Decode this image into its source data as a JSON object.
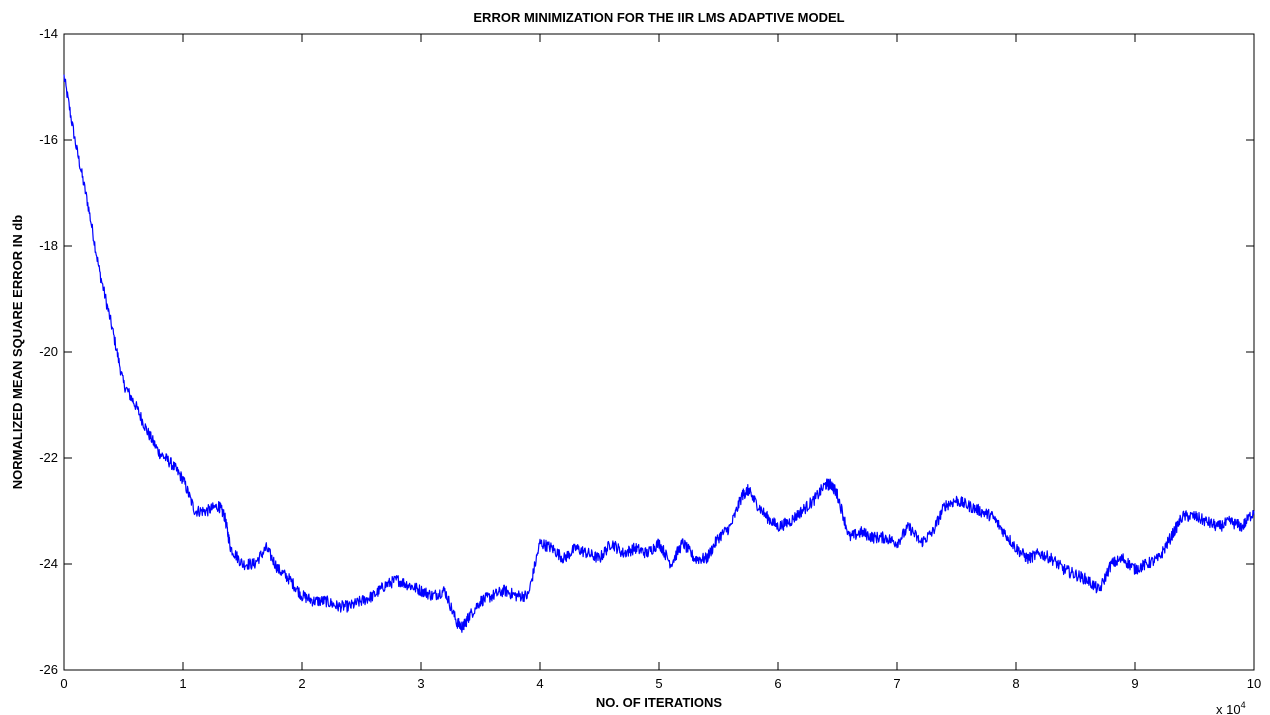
{
  "chart_data": {
    "type": "line",
    "title": "ERROR MINIMIZATION FOR THE IIR LMS ADAPTIVE MODEL",
    "xlabel": "NO. OF ITERATIONS",
    "ylabel": "NORMALIZED MEAN SQUARE ERROR IN db",
    "x_exponent_label": "x 10",
    "x_exponent_power": "4",
    "xlim": [
      0,
      10
    ],
    "ylim": [
      -26,
      -14
    ],
    "x_ticks": [
      "0",
      "1",
      "2",
      "3",
      "4",
      "5",
      "6",
      "7",
      "8",
      "9",
      "10"
    ],
    "y_ticks": [
      "-14",
      "-16",
      "-18",
      "-20",
      "-22",
      "-24",
      "-26"
    ],
    "grid": false,
    "line_color": "#0000ff",
    "series": [
      {
        "x": [
          0,
          0.1,
          0.2,
          0.3,
          0.4,
          0.5,
          0.6,
          0.7,
          0.8,
          0.9,
          1.0,
          1.1,
          1.2,
          1.3,
          1.35,
          1.4,
          1.5,
          1.6,
          1.7,
          1.8,
          1.9,
          2.0,
          2.1,
          2.2,
          2.3,
          2.4,
          2.5,
          2.6,
          2.7,
          2.8,
          2.9,
          3.0,
          3.1,
          3.2,
          3.3,
          3.35,
          3.4,
          3.5,
          3.6,
          3.7,
          3.8,
          3.9,
          4.0,
          4.1,
          4.2,
          4.3,
          4.4,
          4.5,
          4.6,
          4.7,
          4.8,
          4.9,
          5.0,
          5.1,
          5.2,
          5.3,
          5.4,
          5.5,
          5.6,
          5.7,
          5.75,
          5.8,
          5.9,
          6.0,
          6.1,
          6.2,
          6.3,
          6.4,
          6.45,
          6.5,
          6.6,
          6.7,
          6.8,
          6.9,
          7.0,
          7.1,
          7.2,
          7.3,
          7.4,
          7.5,
          7.6,
          7.7,
          7.8,
          7.9,
          8.0,
          8.1,
          8.2,
          8.3,
          8.4,
          8.5,
          8.6,
          8.7,
          8.8,
          8.9,
          9.0,
          9.1,
          9.2,
          9.3,
          9.4,
          9.5,
          9.6,
          9.7,
          9.8,
          9.9,
          10.0
        ],
        "values": [
          -14.8,
          -16.1,
          -17.2,
          -18.5,
          -19.5,
          -20.6,
          -21.0,
          -21.5,
          -21.9,
          -22.1,
          -22.4,
          -23.0,
          -23.0,
          -22.9,
          -23.1,
          -23.7,
          -24.0,
          -24.0,
          -23.7,
          -24.1,
          -24.3,
          -24.6,
          -24.7,
          -24.7,
          -24.8,
          -24.8,
          -24.7,
          -24.6,
          -24.4,
          -24.3,
          -24.4,
          -24.5,
          -24.6,
          -24.5,
          -25.1,
          -25.2,
          -25.0,
          -24.7,
          -24.6,
          -24.5,
          -24.6,
          -24.6,
          -23.6,
          -23.7,
          -23.9,
          -23.7,
          -23.8,
          -23.9,
          -23.6,
          -23.8,
          -23.7,
          -23.8,
          -23.6,
          -24.0,
          -23.6,
          -23.9,
          -23.9,
          -23.5,
          -23.3,
          -22.7,
          -22.6,
          -22.8,
          -23.1,
          -23.3,
          -23.2,
          -23.0,
          -22.8,
          -22.5,
          -22.5,
          -22.7,
          -23.5,
          -23.4,
          -23.5,
          -23.5,
          -23.6,
          -23.3,
          -23.6,
          -23.4,
          -22.9,
          -22.8,
          -22.9,
          -23.0,
          -23.1,
          -23.4,
          -23.7,
          -23.9,
          -23.8,
          -23.9,
          -24.1,
          -24.2,
          -24.3,
          -24.5,
          -24.0,
          -23.9,
          -24.1,
          -24.0,
          -23.9,
          -23.5,
          -23.1,
          -23.1,
          -23.2,
          -23.3,
          -23.2,
          -23.3,
          -23.0
        ]
      }
    ]
  }
}
